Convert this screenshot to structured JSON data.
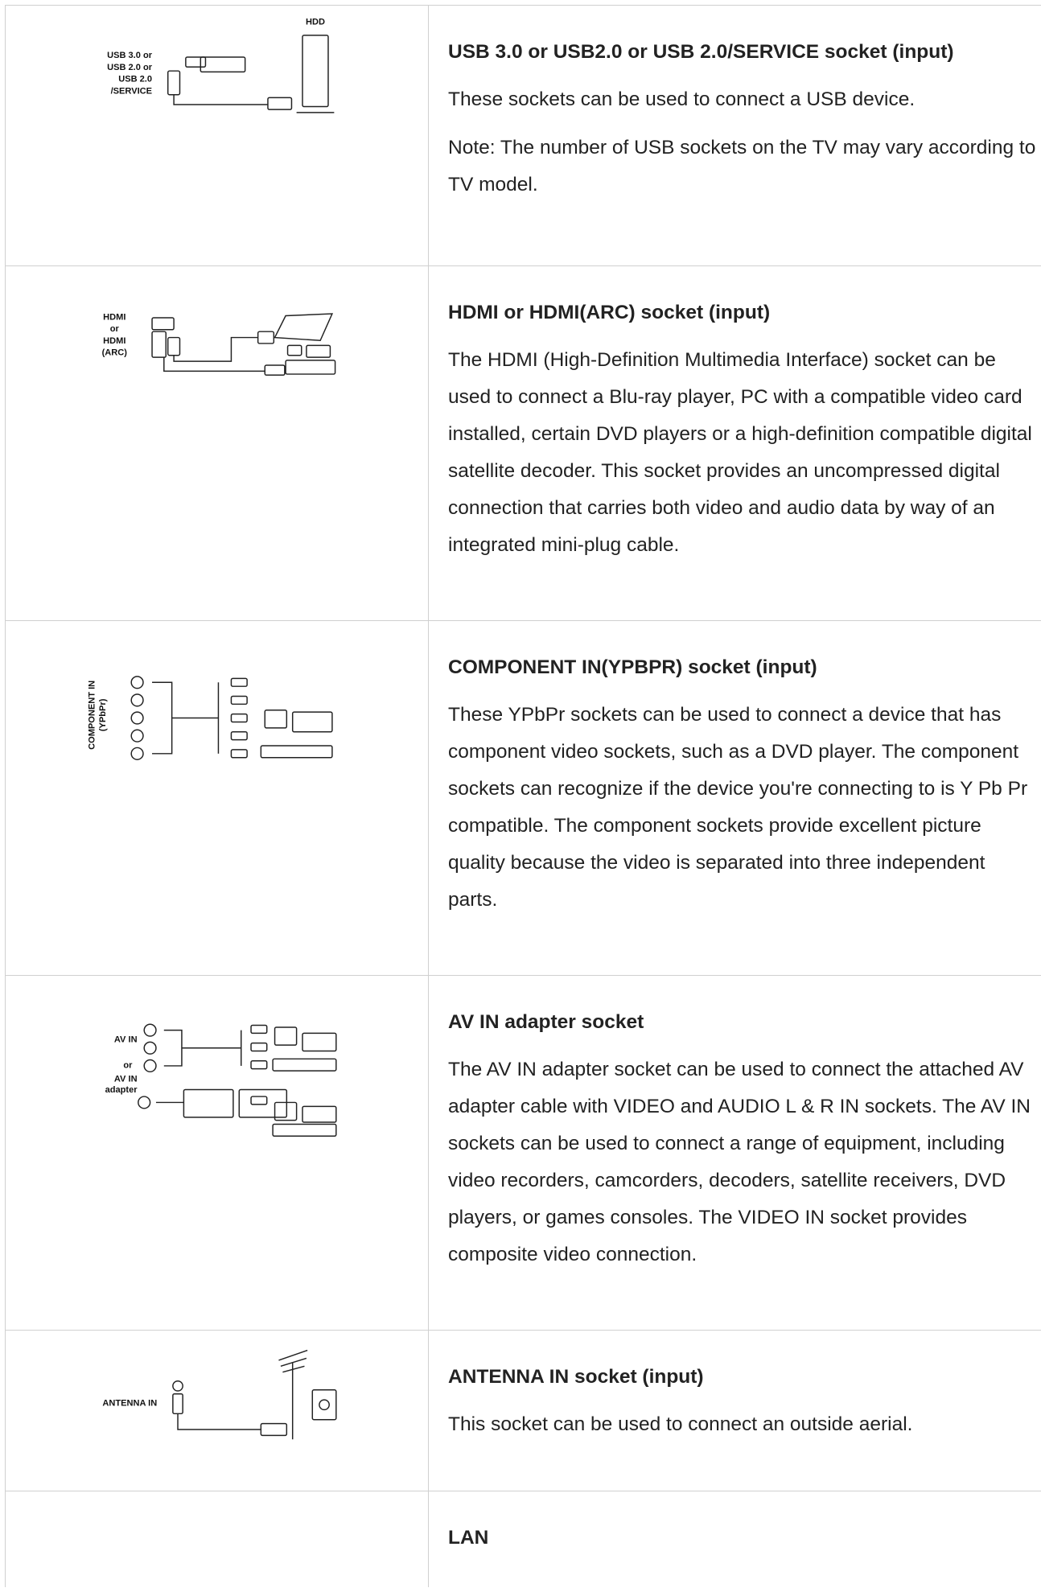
{
  "rows": [
    {
      "diagram_labels": [
        "USB 3.0 or",
        "USB 2.0 or",
        "USB 2.0",
        "/SERVICE",
        "HDD"
      ],
      "title": "USB 3.0 or USB2.0 or USB 2.0/SERVICE socket (input)",
      "paragraphs": [
        "These sockets can be used to connect a USB device.",
        "Note: The number of USB sockets on the TV may vary according to TV model."
      ]
    },
    {
      "diagram_labels": [
        "HDMI",
        "or",
        "HDMI",
        "(ARC)"
      ],
      "title": "HDMI or HDMI(ARC) socket (input)",
      "paragraphs": [
        "The HDMI (High-Definition Multimedia Interface) socket can be used to connect a Blu-ray player, PC with a compatible video card installed, certain DVD players or a high-definition compatible digital satellite decoder. This socket provides an uncompressed digital connection that carries both video and audio data by way of an integrated mini-plug cable."
      ]
    },
    {
      "diagram_labels": [
        "COMPONENT IN",
        "(YPbPr)"
      ],
      "title": "COMPONENT IN(YPBPR) socket (input)",
      "paragraphs": [
        "These YPbPr sockets can be used to connect a device that has component video sockets, such as a DVD player. The component sockets can recognize if the device you're connecting to is Y Pb Pr compatible. The component sockets provide excellent picture quality because the video is separated into three independent parts."
      ]
    },
    {
      "diagram_labels": [
        "AV IN",
        "or",
        "AV IN",
        "adapter"
      ],
      "title": "AV IN adapter socket",
      "paragraphs": [
        "The AV IN adapter socket can be used to connect the attached AV adapter cable with VIDEO and AUDIO L & R IN sockets. The AV IN sockets can be used to connect a range of equipment, including video recorders, camcorders, decoders, satellite receivers, DVD players, or games consoles. The VIDEO IN socket provides composite video connection."
      ]
    },
    {
      "diagram_labels": [
        "ANTENNA IN"
      ],
      "title": "ANTENNA IN socket (input)",
      "paragraphs": [
        "This socket can be used to connect an outside aerial."
      ]
    },
    {
      "title": "LAN"
    }
  ]
}
